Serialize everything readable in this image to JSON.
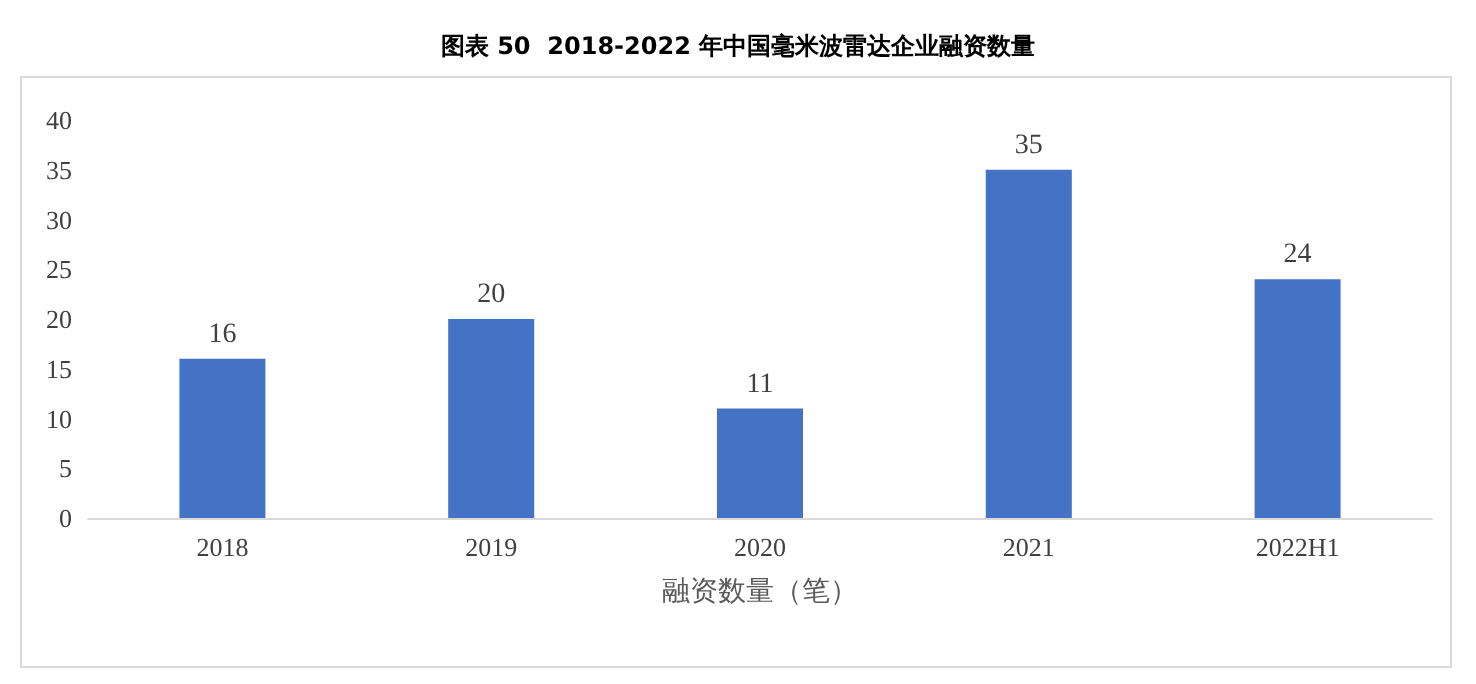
{
  "chart_data": {
    "type": "bar",
    "title": "图表 50  2018-2022 年中国毫米波雷达企业融资数量",
    "xlabel": "融资数量（笔）",
    "categories": [
      "2018",
      "2019",
      "2020",
      "2021",
      "2022H1"
    ],
    "values": [
      16,
      20,
      11,
      35,
      24
    ],
    "color": "#4472c4",
    "ylim": [
      0,
      40
    ],
    "yticks": [
      0,
      5,
      10,
      15,
      20,
      25,
      30,
      35,
      40
    ],
    "grid": false,
    "data_labels": true
  }
}
